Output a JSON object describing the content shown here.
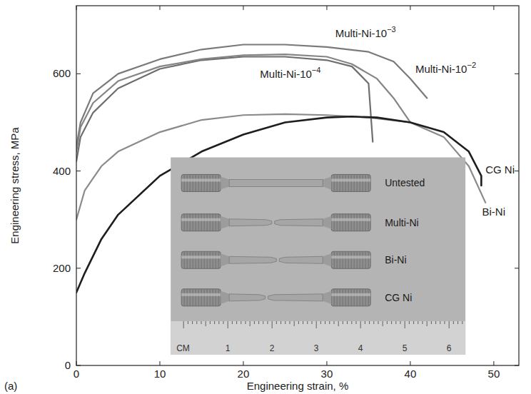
{
  "chart_data": {
    "type": "line",
    "x_label": "Engineering strain, %",
    "y_label": "Engineering stress, MPa",
    "panel_label": "(a)",
    "xlim": [
      0,
      53
    ],
    "ylim": [
      0,
      740
    ],
    "xticks": [
      0,
      10,
      20,
      30,
      40,
      50
    ],
    "yticks": [
      0,
      200,
      400,
      600
    ],
    "grid": false,
    "series": [
      {
        "name": "Multi-Ni-10−3",
        "color": "#7a7a7a",
        "x": [
          0,
          0.5,
          2,
          5,
          10,
          15,
          20,
          25,
          30,
          35,
          38,
          40,
          42
        ],
        "values": [
          450,
          500,
          560,
          600,
          630,
          650,
          660,
          660,
          655,
          645,
          625,
          590,
          550
        ]
      },
      {
        "name": "Multi-Ni-10−4",
        "color": "#6e6e6e",
        "x": [
          0,
          0.5,
          2,
          5,
          10,
          15,
          20,
          25,
          30,
          33,
          35,
          35.5
        ],
        "values": [
          420,
          470,
          520,
          570,
          610,
          628,
          635,
          635,
          628,
          615,
          580,
          460
        ]
      },
      {
        "name": "Multi-Ni-10−2",
        "color": "#858585",
        "x": [
          0,
          0.5,
          2,
          5,
          10,
          15,
          20,
          25,
          30,
          33,
          36,
          38,
          40
        ],
        "values": [
          440,
          490,
          540,
          585,
          615,
          630,
          638,
          640,
          635,
          620,
          590,
          550,
          500
        ]
      },
      {
        "name": "Bi-Ni",
        "color": "#8a8a8a",
        "x": [
          0,
          1,
          3,
          5,
          10,
          15,
          20,
          25,
          30,
          35,
          40,
          44,
          47,
          49
        ],
        "values": [
          300,
          360,
          410,
          440,
          480,
          505,
          515,
          517,
          515,
          510,
          500,
          470,
          410,
          335
        ]
      },
      {
        "name": "CG Ni",
        "color": "#1e1e1e",
        "x": [
          0,
          1,
          3,
          5,
          10,
          15,
          20,
          25,
          30,
          33,
          36,
          40,
          44,
          47,
          48.5,
          48.5
        ],
        "values": [
          150,
          190,
          260,
          310,
          390,
          440,
          475,
          500,
          510,
          512,
          510,
          500,
          480,
          440,
          390,
          370
        ]
      }
    ],
    "inset": {
      "specimens": [
        "Untested",
        "Multi-Ni",
        "Bi-Ni",
        "CG Ni"
      ],
      "ruler_unit": "CM",
      "ruler_ticks": [
        1,
        2,
        3,
        4,
        5,
        6
      ]
    }
  }
}
